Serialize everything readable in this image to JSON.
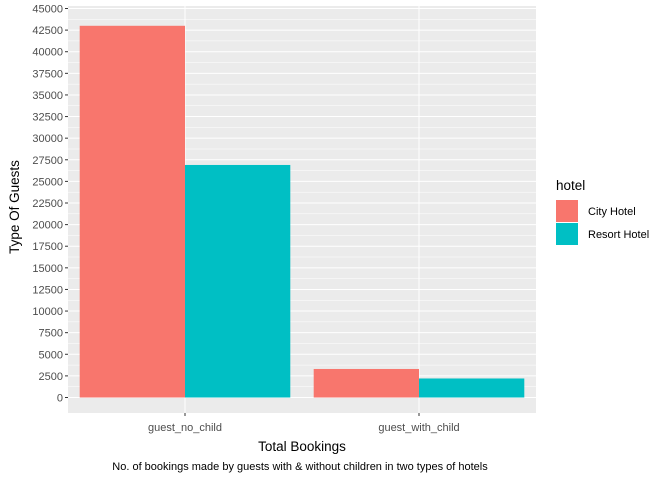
{
  "chart_data": {
    "type": "bar",
    "title": "",
    "xlabel": "Total Bookings",
    "ylabel": "Type Of Guests",
    "caption": "No. of bookings made by guests with & without children in two types of hotels",
    "categories": [
      "guest_no_child",
      "guest_with_child"
    ],
    "series": [
      {
        "name": "City Hotel",
        "color": "#F8766D",
        "values": [
          43000,
          3300
        ]
      },
      {
        "name": "Resort Hotel",
        "color": "#00BFC4",
        "values": [
          26900,
          2200
        ]
      }
    ],
    "ylim": [
      0,
      45000
    ],
    "yticks": [
      0,
      2500,
      5000,
      7500,
      10000,
      12500,
      15000,
      17500,
      20000,
      22500,
      25000,
      27500,
      30000,
      32500,
      35000,
      37500,
      40000,
      42500,
      45000
    ],
    "legend": {
      "title": "hotel",
      "position": "right"
    },
    "grid": true,
    "panel_background": "#EBEBEB"
  }
}
